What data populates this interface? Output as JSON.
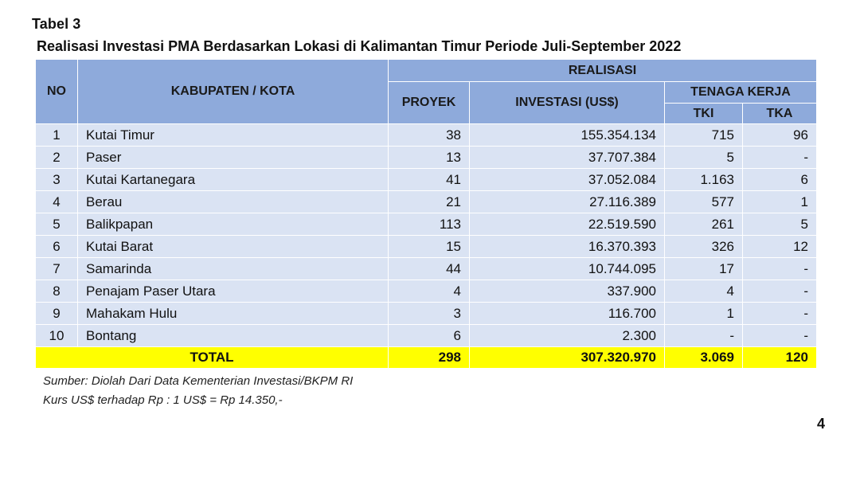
{
  "document": {
    "label": "Tabel 3",
    "title": "Realisasi Investasi PMA Berdasarkan Lokasi di Kalimantan Timur Periode Juli-September  2022",
    "page_number": "4"
  },
  "table": {
    "headers": {
      "no": "NO",
      "region": "KABUPATEN / KOTA",
      "realisasi": "REALISASI",
      "proyek": "PROYEK",
      "investasi": "INVESTASI (US$)",
      "tenaga_kerja": "TENAGA KERJA",
      "tki": "TKI",
      "tka": "TKA"
    },
    "rows": [
      {
        "no": "1",
        "name": "Kutai Timur",
        "proyek": "38",
        "investasi": "155.354.134",
        "tki": "715",
        "tka": "96"
      },
      {
        "no": "2",
        "name": "Paser",
        "proyek": "13",
        "investasi": "37.707.384",
        "tki": "5",
        "tka": "-"
      },
      {
        "no": "3",
        "name": "Kutai Kartanegara",
        "proyek": "41",
        "investasi": "37.052.084",
        "tki": "1.163",
        "tka": "6"
      },
      {
        "no": "4",
        "name": "Berau",
        "proyek": "21",
        "investasi": "27.116.389",
        "tki": "577",
        "tka": "1"
      },
      {
        "no": "5",
        "name": "Balikpapan",
        "proyek": "113",
        "investasi": "22.519.590",
        "tki": "261",
        "tka": "5"
      },
      {
        "no": "6",
        "name": "Kutai Barat",
        "proyek": "15",
        "investasi": "16.370.393",
        "tki": "326",
        "tka": "12"
      },
      {
        "no": "7",
        "name": "Samarinda",
        "proyek": "44",
        "investasi": "10.744.095",
        "tki": "17",
        "tka": "-"
      },
      {
        "no": "8",
        "name": "Penajam Paser Utara",
        "proyek": "4",
        "investasi": "337.900",
        "tki": "4",
        "tka": "-"
      },
      {
        "no": "9",
        "name": "Mahakam Hulu",
        "proyek": "3",
        "investasi": "116.700",
        "tki": "1",
        "tka": "-"
      },
      {
        "no": "10",
        "name": "Bontang",
        "proyek": "6",
        "investasi": "2.300",
        "tki": "-",
        "tka": "-"
      }
    ],
    "total": {
      "label": "TOTAL",
      "proyek": "298",
      "investasi": "307.320.970",
      "tki": "3.069",
      "tka": "120"
    }
  },
  "notes": {
    "source": "Sumber: Diolah Dari Data Kementerian Investasi/BKPM RI",
    "rate": "Kurs US$ terhadap Rp : 1 US$ = Rp 14.350,-"
  },
  "colors": {
    "header_bg": "#8eaadb",
    "row_bg": "#dae3f3",
    "total_bg": "#ffff00"
  }
}
